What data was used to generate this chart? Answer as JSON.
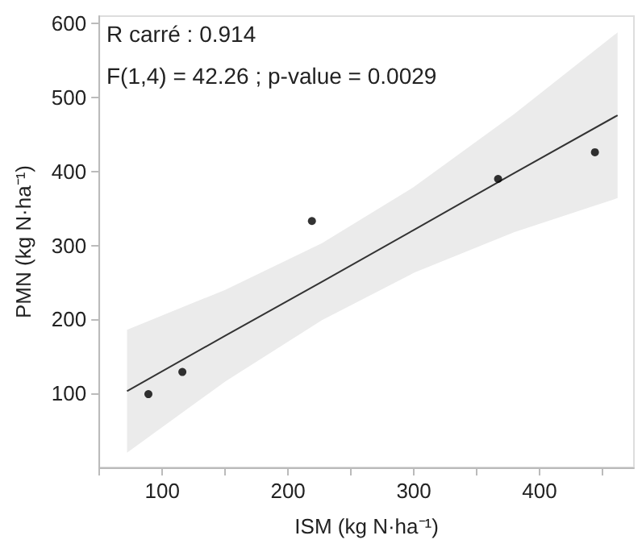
{
  "chart_data": {
    "type": "scatter",
    "xlabel": "ISM (kg N·ha⁻¹)",
    "ylabel": "PMN (kg N·ha⁻¹)",
    "annotations": [
      "R carré : 0.914",
      "F(1,4) = 42.26 ; p-value = 0.0029"
    ],
    "xlim": [
      50,
      475
    ],
    "ylim": [
      0,
      610
    ],
    "xticks": [
      {
        "value": 50,
        "label": null
      },
      100,
      {
        "value": 150,
        "label": null
      },
      200,
      {
        "value": 250,
        "label": null
      },
      300,
      {
        "value": 350,
        "label": null
      },
      400,
      {
        "value": 450,
        "label": null
      }
    ],
    "yticks": [
      100,
      200,
      300,
      400,
      500,
      600
    ],
    "grid": false,
    "marker": "circle",
    "series": [
      {
        "type": "line",
        "color": "#333333",
        "x": [
          72,
          150,
          227,
          300,
          380,
          462
        ],
        "values": [
          103,
          178,
          251,
          321,
          398,
          476
        ],
        "lower": [
          20,
          116,
          199,
          263,
          318,
          364
        ],
        "upper": [
          186,
          240,
          303,
          379,
          478,
          588
        ],
        "marker": "none"
      },
      {
        "type": "scatter",
        "color": "#000000",
        "x": [
          89,
          116,
          219,
          367,
          444
        ],
        "values": [
          99,
          129,
          333,
          390,
          426
        ]
      }
    ]
  }
}
